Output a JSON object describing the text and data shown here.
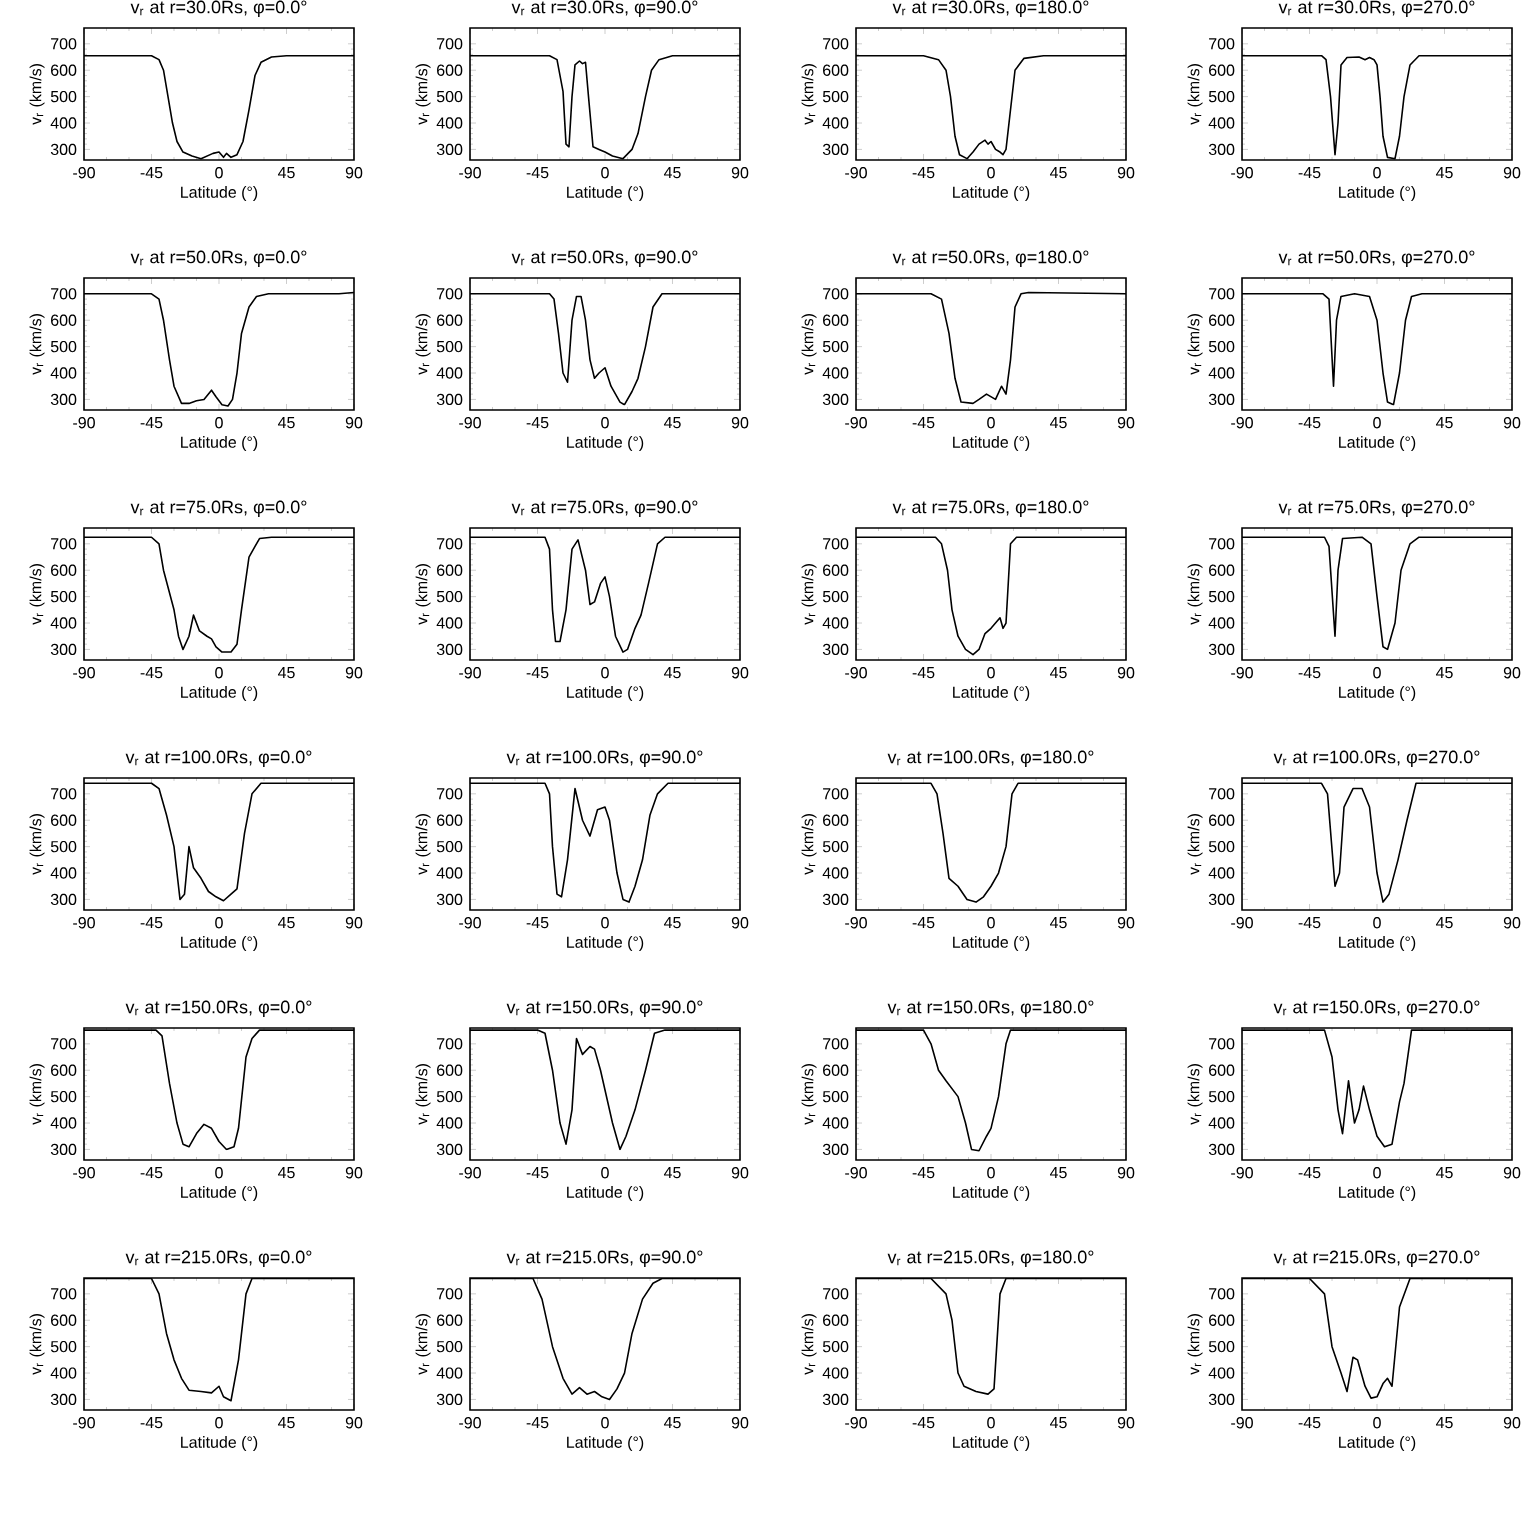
{
  "chart_data": [
    {
      "type": "line",
      "title": "v$_{r}$ at r=30.0Rs, φ=0.0°",
      "xlabel": "Latitude (°)",
      "ylabel": "v$_{r}$ (km/s)",
      "xlim": [
        -90,
        90
      ],
      "xticks": [
        -90,
        -45,
        0,
        45,
        90
      ],
      "ylim": [
        260,
        760
      ],
      "yticks": [
        300,
        400,
        500,
        600,
        700
      ],
      "color": "#000000",
      "x": [
        -90,
        -45,
        -40,
        -37,
        -34,
        -31,
        -28,
        -24,
        -18,
        -12,
        -8,
        -4,
        0,
        3,
        5,
        8,
        12,
        16,
        20,
        24,
        28,
        35,
        45,
        90
      ],
      "values": [
        655,
        655,
        640,
        600,
        500,
        400,
        330,
        290,
        275,
        265,
        275,
        285,
        290,
        270,
        285,
        270,
        280,
        330,
        450,
        580,
        630,
        650,
        655,
        655
      ]
    },
    {
      "type": "line",
      "title": "v$_{r}$ at r=30.0Rs, φ=90.0°",
      "xlabel": "Latitude (°)",
      "ylabel": "v$_{r}$ (km/s)",
      "xlim": [
        -90,
        90
      ],
      "xticks": [
        -90,
        -45,
        0,
        45,
        90
      ],
      "ylim": [
        260,
        760
      ],
      "yticks": [
        300,
        400,
        500,
        600,
        700
      ],
      "color": "#000000",
      "x": [
        -90,
        -37,
        -32,
        -28,
        -26,
        -24,
        -22,
        -20,
        -17,
        -15,
        -13,
        -11,
        -8,
        -4,
        0,
        5,
        12,
        18,
        22,
        27,
        31,
        36,
        45,
        90
      ],
      "values": [
        655,
        655,
        640,
        520,
        320,
        310,
        500,
        620,
        635,
        625,
        630,
        500,
        310,
        300,
        290,
        275,
        265,
        300,
        360,
        500,
        600,
        640,
        655,
        655
      ]
    },
    {
      "type": "line",
      "title": "v$_{r}$ at r=30.0Rs, φ=180.0°",
      "xlabel": "Latitude (°)",
      "ylabel": "v$_{r}$ (km/s)",
      "xlim": [
        -90,
        90
      ],
      "xticks": [
        -90,
        -45,
        0,
        45,
        90
      ],
      "ylim": [
        260,
        760
      ],
      "yticks": [
        300,
        400,
        500,
        600,
        700
      ],
      "color": "#000000",
      "x": [
        -90,
        -45,
        -35,
        -30,
        -27,
        -24,
        -21,
        -16,
        -12,
        -8,
        -4,
        -2,
        0,
        3,
        6,
        8,
        10,
        13,
        16,
        22,
        35,
        90
      ],
      "values": [
        655,
        655,
        640,
        600,
        500,
        350,
        280,
        265,
        290,
        320,
        335,
        320,
        330,
        300,
        290,
        280,
        300,
        450,
        600,
        645,
        655,
        655
      ]
    },
    {
      "type": "line",
      "title": "v$_{r}$ at r=30.0Rs, φ=270.0°",
      "xlabel": "Latitude (°)",
      "ylabel": "v$_{r}$ (km/s)",
      "xlim": [
        -90,
        90
      ],
      "xticks": [
        -90,
        -45,
        0,
        45,
        90
      ],
      "ylim": [
        260,
        760
      ],
      "yticks": [
        300,
        400,
        500,
        600,
        700
      ],
      "color": "#000000",
      "x": [
        -90,
        -37,
        -34,
        -31,
        -28,
        -26,
        -24,
        -20,
        -12,
        -8,
        -5,
        -2,
        0,
        2,
        4,
        7,
        12,
        15,
        18,
        22,
        28,
        90
      ],
      "values": [
        655,
        655,
        640,
        500,
        280,
        400,
        620,
        648,
        650,
        640,
        648,
        640,
        620,
        500,
        350,
        270,
        265,
        350,
        500,
        620,
        655,
        655
      ]
    },
    {
      "type": "line",
      "title": "v$_{r}$ at r=50.0Rs, φ=0.0°",
      "xlabel": "Latitude (°)",
      "ylabel": "v$_{r}$ (km/s)",
      "xlim": [
        -90,
        90
      ],
      "xticks": [
        -90,
        -45,
        0,
        45,
        90
      ],
      "ylim": [
        260,
        760
      ],
      "yticks": [
        300,
        400,
        500,
        600,
        700
      ],
      "color": "#000000",
      "x": [
        -90,
        -45,
        -40,
        -37,
        -33,
        -30,
        -25,
        -20,
        -15,
        -10,
        -5,
        -2,
        2,
        6,
        9,
        12,
        15,
        20,
        25,
        33,
        80,
        90
      ],
      "values": [
        700,
        700,
        680,
        600,
        450,
        350,
        285,
        285,
        295,
        300,
        335,
        310,
        280,
        275,
        300,
        400,
        550,
        650,
        690,
        700,
        700,
        705
      ]
    },
    {
      "type": "line",
      "title": "v$_{r}$ at r=50.0Rs, φ=90.0°",
      "xlabel": "Latitude (°)",
      "ylabel": "v$_{r}$ (km/s)",
      "xlim": [
        -90,
        90
      ],
      "xticks": [
        -90,
        -45,
        0,
        45,
        90
      ],
      "ylim": [
        260,
        760
      ],
      "yticks": [
        300,
        400,
        500,
        600,
        700
      ],
      "color": "#000000",
      "x": [
        -90,
        -37,
        -34,
        -31,
        -28,
        -25,
        -22,
        -19,
        -16,
        -13,
        -10,
        -7,
        -4,
        0,
        4,
        10,
        13,
        18,
        22,
        27,
        32,
        38,
        90
      ],
      "values": [
        700,
        700,
        680,
        550,
        400,
        365,
        600,
        690,
        690,
        600,
        450,
        380,
        400,
        420,
        350,
        290,
        280,
        330,
        380,
        500,
        650,
        700,
        700
      ]
    },
    {
      "type": "line",
      "title": "v$_{r}$ at r=50.0Rs, φ=180.0°",
      "xlabel": "Latitude (°)",
      "ylabel": "v$_{r}$ (km/s)",
      "xlim": [
        -90,
        90
      ],
      "xticks": [
        -90,
        -45,
        0,
        45,
        90
      ],
      "ylim": [
        260,
        760
      ],
      "yticks": [
        300,
        400,
        500,
        600,
        700
      ],
      "color": "#000000",
      "x": [
        -90,
        -40,
        -33,
        -28,
        -24,
        -20,
        -12,
        -8,
        -3,
        3,
        7,
        10,
        13,
        16,
        20,
        25,
        90
      ],
      "values": [
        700,
        700,
        680,
        550,
        380,
        290,
        285,
        300,
        320,
        300,
        350,
        320,
        450,
        650,
        700,
        705,
        700
      ]
    },
    {
      "type": "line",
      "title": "v$_{r}$ at r=50.0Rs, φ=270.0°",
      "xlabel": "Latitude (°)",
      "ylabel": "v$_{r}$ (km/s)",
      "xlim": [
        -90,
        90
      ],
      "xticks": [
        -90,
        -45,
        0,
        45,
        90
      ],
      "ylim": [
        260,
        760
      ],
      "yticks": [
        300,
        400,
        500,
        600,
        700
      ],
      "color": "#000000",
      "x": [
        -90,
        -36,
        -32,
        -29,
        -27,
        -24,
        -15,
        -5,
        0,
        4,
        7,
        11,
        15,
        19,
        23,
        30,
        90
      ],
      "values": [
        700,
        700,
        680,
        350,
        600,
        690,
        700,
        690,
        600,
        400,
        290,
        280,
        400,
        600,
        690,
        700,
        700
      ]
    },
    {
      "type": "line",
      "title": "v$_{r}$ at r=75.0Rs, φ=0.0°",
      "xlabel": "Latitude (°)",
      "ylabel": "v$_{r}$ (km/s)",
      "xlim": [
        -90,
        90
      ],
      "xticks": [
        -90,
        -45,
        0,
        45,
        90
      ],
      "ylim": [
        260,
        760
      ],
      "yticks": [
        300,
        400,
        500,
        600,
        700
      ],
      "color": "#000000",
      "x": [
        -90,
        -45,
        -40,
        -37,
        -30,
        -27,
        -24,
        -20,
        -17,
        -13,
        -8,
        -5,
        -2,
        2,
        8,
        12,
        15,
        20,
        27,
        35,
        90
      ],
      "values": [
        725,
        725,
        700,
        600,
        450,
        350,
        300,
        350,
        430,
        370,
        350,
        340,
        310,
        290,
        290,
        320,
        450,
        650,
        720,
        725,
        725
      ]
    },
    {
      "type": "line",
      "title": "v$_{r}$ at r=75.0Rs, φ=90.0°",
      "xlabel": "Latitude (°)",
      "ylabel": "v$_{r}$ (km/s)",
      "xlim": [
        -90,
        90
      ],
      "xticks": [
        -90,
        -45,
        0,
        45,
        90
      ],
      "ylim": [
        260,
        760
      ],
      "yticks": [
        300,
        400,
        500,
        600,
        700
      ],
      "color": "#000000",
      "x": [
        -90,
        -40,
        -37,
        -35,
        -33,
        -30,
        -26,
        -22,
        -18,
        -13,
        -10,
        -7,
        -3,
        0,
        3,
        7,
        12,
        15,
        20,
        24,
        29,
        35,
        40,
        90
      ],
      "values": [
        725,
        725,
        680,
        450,
        330,
        330,
        450,
        680,
        715,
        600,
        470,
        480,
        550,
        575,
        500,
        350,
        290,
        300,
        380,
        430,
        550,
        700,
        725,
        725
      ]
    },
    {
      "type": "line",
      "title": "v$_{r}$ at r=75.0Rs, φ=180.0°",
      "xlabel": "Latitude (°)",
      "ylabel": "v$_{r}$ (km/s)",
      "xlim": [
        -90,
        90
      ],
      "xticks": [
        -90,
        -45,
        0,
        45,
        90
      ],
      "ylim": [
        260,
        760
      ],
      "yticks": [
        300,
        400,
        500,
        600,
        700
      ],
      "color": "#000000",
      "x": [
        -90,
        -37,
        -33,
        -29,
        -26,
        -22,
        -17,
        -12,
        -8,
        -4,
        0,
        3,
        6,
        8,
        10,
        13,
        17,
        90
      ],
      "values": [
        725,
        725,
        700,
        600,
        450,
        350,
        300,
        280,
        300,
        360,
        380,
        400,
        420,
        380,
        400,
        700,
        725,
        725
      ]
    },
    {
      "type": "line",
      "title": "v$_{r}$ at r=75.0Rs, φ=270.0°",
      "xlabel": "Latitude (°)",
      "ylabel": "v$_{r}$ (km/s)",
      "xlim": [
        -90,
        90
      ],
      "xticks": [
        -90,
        -45,
        0,
        45,
        90
      ],
      "ylim": [
        260,
        760
      ],
      "yticks": [
        300,
        400,
        500,
        600,
        700
      ],
      "color": "#000000",
      "x": [
        -90,
        -35,
        -32,
        -28,
        -26,
        -23,
        -10,
        -4,
        0,
        4,
        7,
        12,
        16,
        22,
        28,
        90
      ],
      "values": [
        725,
        725,
        690,
        350,
        600,
        720,
        725,
        700,
        500,
        310,
        300,
        400,
        600,
        700,
        725,
        725
      ]
    },
    {
      "type": "line",
      "title": "v$_{r}$ at r=100.0Rs, φ=0.0°",
      "xlabel": "Latitude (°)",
      "ylabel": "v$_{r}$ (km/s)",
      "xlim": [
        -90,
        90
      ],
      "xticks": [
        -90,
        -45,
        0,
        45,
        90
      ],
      "ylim": [
        260,
        760
      ],
      "yticks": [
        300,
        400,
        500,
        600,
        700
      ],
      "color": "#000000",
      "x": [
        -90,
        -45,
        -40,
        -35,
        -30,
        -26,
        -23,
        -20,
        -17,
        -12,
        -7,
        -2,
        3,
        8,
        12,
        17,
        22,
        28,
        90
      ],
      "values": [
        740,
        740,
        720,
        620,
        500,
        300,
        320,
        500,
        420,
        380,
        330,
        310,
        295,
        320,
        340,
        550,
        700,
        740,
        740
      ]
    },
    {
      "type": "line",
      "title": "v$_{r}$ at r=100.0Rs, φ=90.0°",
      "xlabel": "Latitude (°)",
      "ylabel": "v$_{r}$ (km/s)",
      "xlim": [
        -90,
        90
      ],
      "xticks": [
        -90,
        -45,
        0,
        45,
        90
      ],
      "ylim": [
        260,
        760
      ],
      "yticks": [
        300,
        400,
        500,
        600,
        700
      ],
      "color": "#000000",
      "x": [
        -90,
        -40,
        -37,
        -35,
        -32,
        -29,
        -25,
        -20,
        -15,
        -10,
        -5,
        0,
        3,
        8,
        12,
        16,
        20,
        25,
        30,
        35,
        42,
        90
      ],
      "values": [
        740,
        740,
        700,
        500,
        320,
        310,
        450,
        720,
        600,
        540,
        640,
        650,
        600,
        400,
        300,
        290,
        350,
        450,
        620,
        700,
        740,
        740
      ]
    },
    {
      "type": "line",
      "title": "v$_{r}$ at r=100.0Rs, φ=180.0°",
      "xlabel": "Latitude (°)",
      "ylabel": "v$_{r}$ (km/s)",
      "xlim": [
        -90,
        90
      ],
      "xticks": [
        -90,
        -45,
        0,
        45,
        90
      ],
      "ylim": [
        260,
        760
      ],
      "yticks": [
        300,
        400,
        500,
        600,
        700
      ],
      "color": "#000000",
      "x": [
        -90,
        -40,
        -36,
        -32,
        -28,
        -22,
        -16,
        -10,
        -5,
        0,
        5,
        10,
        14,
        18,
        90
      ],
      "values": [
        740,
        740,
        700,
        550,
        380,
        350,
        300,
        290,
        310,
        350,
        400,
        500,
        700,
        740,
        740
      ]
    },
    {
      "type": "line",
      "title": "v$_{r}$ at r=100.0Rs, φ=270.0°",
      "xlabel": "Latitude (°)",
      "ylabel": "v$_{r}$ (km/s)",
      "xlim": [
        -90,
        90
      ],
      "xticks": [
        -90,
        -45,
        0,
        45,
        90
      ],
      "ylim": [
        260,
        760
      ],
      "yticks": [
        300,
        400,
        500,
        600,
        700
      ],
      "color": "#000000",
      "x": [
        -90,
        -37,
        -33,
        -28,
        -25,
        -22,
        -16,
        -10,
        -5,
        0,
        4,
        8,
        14,
        20,
        26,
        90
      ],
      "values": [
        740,
        740,
        700,
        350,
        400,
        650,
        720,
        720,
        650,
        400,
        290,
        320,
        450,
        600,
        740,
        740
      ]
    },
    {
      "type": "line",
      "title": "v$_{r}$ at r=150.0Rs, φ=0.0°",
      "xlabel": "Latitude (°)",
      "ylabel": "v$_{r}$ (km/s)",
      "xlim": [
        -90,
        90
      ],
      "xticks": [
        -90,
        -45,
        0,
        45,
        90
      ],
      "ylim": [
        260,
        760
      ],
      "yticks": [
        300,
        400,
        500,
        600,
        700
      ],
      "color": "#000000",
      "x": [
        -90,
        -42,
        -38,
        -33,
        -28,
        -24,
        -20,
        -15,
        -10,
        -5,
        0,
        5,
        10,
        13,
        18,
        22,
        27,
        90
      ],
      "values": [
        752,
        752,
        730,
        550,
        400,
        320,
        310,
        360,
        395,
        380,
        330,
        300,
        310,
        380,
        650,
        720,
        752,
        752
      ]
    },
    {
      "type": "line",
      "title": "v$_{r}$ at r=150.0Rs, φ=90.0°",
      "xlabel": "Latitude (°)",
      "ylabel": "v$_{r}$ (km/s)",
      "xlim": [
        -90,
        90
      ],
      "xticks": [
        -90,
        -45,
        0,
        45,
        90
      ],
      "ylim": [
        260,
        760
      ],
      "yticks": [
        300,
        400,
        500,
        600,
        700
      ],
      "color": "#000000",
      "x": [
        -90,
        -45,
        -40,
        -35,
        -30,
        -26,
        -22,
        -19,
        -15,
        -10,
        -7,
        -3,
        5,
        10,
        14,
        20,
        27,
        33,
        40,
        90
      ],
      "values": [
        752,
        752,
        740,
        600,
        400,
        320,
        450,
        720,
        660,
        690,
        680,
        600,
        400,
        300,
        350,
        450,
        600,
        740,
        752,
        752
      ]
    },
    {
      "type": "line",
      "title": "v$_{r}$ at r=150.0Rs, φ=180.0°",
      "xlabel": "Latitude (°)",
      "ylabel": "v$_{r}$ (km/s)",
      "xlim": [
        -90,
        90
      ],
      "xticks": [
        -90,
        -45,
        0,
        45,
        90
      ],
      "ylim": [
        260,
        760
      ],
      "yticks": [
        300,
        400,
        500,
        600,
        700
      ],
      "color": "#000000",
      "x": [
        -90,
        -45,
        -40,
        -35,
        -30,
        -22,
        -17,
        -13,
        -8,
        -3,
        0,
        5,
        10,
        13,
        90
      ],
      "values": [
        752,
        752,
        700,
        600,
        560,
        500,
        400,
        300,
        295,
        350,
        380,
        500,
        700,
        752,
        752
      ]
    },
    {
      "type": "line",
      "title": "v$_{r}$ at r=150.0Rs, φ=270.0°",
      "xlabel": "Latitude (°)",
      "ylabel": "v$_{r}$ (km/s)",
      "xlim": [
        -90,
        90
      ],
      "xticks": [
        -90,
        -45,
        0,
        45,
        90
      ],
      "ylim": [
        260,
        760
      ],
      "yticks": [
        300,
        400,
        500,
        600,
        700
      ],
      "color": "#000000",
      "x": [
        -90,
        -35,
        -30,
        -26,
        -23,
        -19,
        -15,
        -12,
        -9,
        -5,
        0,
        5,
        10,
        15,
        18,
        23,
        90
      ],
      "values": [
        752,
        752,
        650,
        450,
        360,
        560,
        400,
        450,
        540,
        450,
        350,
        310,
        320,
        480,
        550,
        752,
        752
      ]
    },
    {
      "type": "line",
      "title": "v$_{r}$ at r=215.0Rs, φ=0.0°",
      "xlabel": "Latitude (°)",
      "ylabel": "v$_{r}$ (km/s)",
      "xlim": [
        -90,
        90
      ],
      "xticks": [
        -90,
        -45,
        0,
        45,
        90
      ],
      "ylim": [
        260,
        760
      ],
      "yticks": [
        300,
        400,
        500,
        600,
        700
      ],
      "color": "#000000",
      "x": [
        -90,
        -45,
        -40,
        -35,
        -30,
        -25,
        -20,
        -12,
        -5,
        0,
        3,
        8,
        13,
        18,
        22,
        90
      ],
      "values": [
        758,
        758,
        700,
        550,
        450,
        380,
        335,
        330,
        325,
        350,
        310,
        295,
        450,
        700,
        758,
        758
      ]
    },
    {
      "type": "line",
      "title": "v$_{r}$ at r=215.0Rs, φ=90.0°",
      "xlabel": "Latitude (°)",
      "ylabel": "v$_{r}$ (km/s)",
      "xlim": [
        -90,
        90
      ],
      "xticks": [
        -90,
        -45,
        0,
        45,
        90
      ],
      "ylim": [
        260,
        760
      ],
      "yticks": [
        300,
        400,
        500,
        600,
        700
      ],
      "color": "#000000",
      "x": [
        -90,
        -48,
        -42,
        -35,
        -28,
        -22,
        -17,
        -12,
        -7,
        -2,
        3,
        8,
        13,
        18,
        25,
        32,
        38,
        90
      ],
      "values": [
        758,
        758,
        680,
        500,
        380,
        320,
        345,
        320,
        330,
        310,
        300,
        340,
        400,
        550,
        680,
        740,
        758,
        758
      ]
    },
    {
      "type": "line",
      "title": "v$_{r}$ at r=215.0Rs, φ=180.0°",
      "xlabel": "Latitude (°)",
      "ylabel": "v$_{r}$ (km/s)",
      "xlim": [
        -90,
        90
      ],
      "xticks": [
        -90,
        -45,
        0,
        45,
        90
      ],
      "ylim": [
        260,
        760
      ],
      "yticks": [
        300,
        400,
        500,
        600,
        700
      ],
      "color": "#000000",
      "x": [
        -90,
        -40,
        -30,
        -26,
        -22,
        -18,
        -10,
        -2,
        2,
        6,
        10,
        90
      ],
      "values": [
        758,
        758,
        700,
        600,
        400,
        350,
        330,
        320,
        340,
        700,
        758,
        758
      ]
    },
    {
      "type": "line",
      "title": "v$_{r}$ at r=215.0Rs, φ=270.0°",
      "xlabel": "Latitude (°)",
      "ylabel": "v$_{r}$ (km/s)",
      "xlim": [
        -90,
        90
      ],
      "xticks": [
        -90,
        -45,
        0,
        45,
        90
      ],
      "ylim": [
        260,
        760
      ],
      "yticks": [
        300,
        400,
        500,
        600,
        700
      ],
      "color": "#000000",
      "x": [
        -90,
        -45,
        -35,
        -30,
        -24,
        -20,
        -16,
        -13,
        -8,
        -4,
        0,
        4,
        7,
        10,
        15,
        22,
        90
      ],
      "values": [
        758,
        758,
        700,
        500,
        400,
        330,
        460,
        450,
        350,
        305,
        310,
        360,
        380,
        350,
        650,
        758,
        758
      ]
    }
  ]
}
